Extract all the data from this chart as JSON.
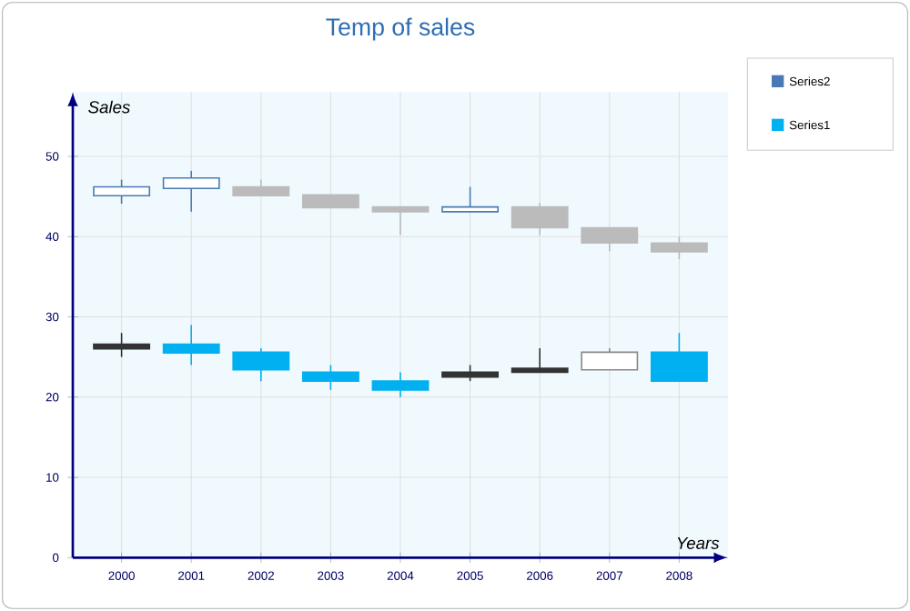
{
  "chart_data": {
    "type": "candlestick",
    "title": "Temp of sales",
    "xlabel": "Years",
    "ylabel": "Sales",
    "categories": [
      "2000",
      "2001",
      "2002",
      "2003",
      "2004",
      "2005",
      "2006",
      "2007",
      "2008"
    ],
    "ylim": [
      0,
      58
    ],
    "yticks": [
      0,
      10,
      20,
      30,
      40,
      50
    ],
    "grid": true,
    "legend": "top right",
    "series": [
      {
        "name": "Series2",
        "color": "#4a7ab5",
        "colors": [
          "#4a7ab5",
          "#4a7ab5",
          "#bbbbbb",
          "#bbbbbb",
          "#bbbbbb",
          "#4a7ab5",
          "#bbbbbb",
          "#bbbbbb",
          "#bbbbbb"
        ],
        "ohlc": [
          [
            45.1,
            47.1,
            44.1,
            46.2
          ],
          [
            46.0,
            48.2,
            43.1,
            47.3
          ],
          [
            46.2,
            47.1,
            45.1,
            45.1
          ],
          [
            45.2,
            45.2,
            43.6,
            43.6
          ],
          [
            43.7,
            43.7,
            40.2,
            43.1
          ],
          [
            43.1,
            46.2,
            43.1,
            43.7
          ],
          [
            43.7,
            44.2,
            40.2,
            41.1
          ],
          [
            41.1,
            41.1,
            38.2,
            39.2
          ],
          [
            39.2,
            40.0,
            37.2,
            38.1
          ]
        ]
      },
      {
        "name": "Series1",
        "color": "#00b0f0",
        "colors": [
          "#333333",
          "#00b0f0",
          "#00b0f0",
          "#00b0f0",
          "#00b0f0",
          "#333333",
          "#333333",
          "#888888",
          "#00b0f0"
        ],
        "ohlc": [
          [
            26.6,
            28.0,
            25.0,
            26.0
          ],
          [
            26.6,
            29.0,
            24.0,
            25.5
          ],
          [
            25.6,
            26.1,
            22.0,
            23.4
          ],
          [
            23.1,
            24.0,
            20.9,
            22.0
          ],
          [
            22.0,
            23.1,
            20.0,
            20.9
          ],
          [
            23.1,
            24.0,
            22.0,
            22.5
          ],
          [
            23.6,
            26.1,
            23.1,
            23.1
          ],
          [
            23.4,
            26.1,
            23.4,
            25.6
          ],
          [
            25.6,
            28.0,
            22.0,
            22.0
          ]
        ]
      }
    ]
  }
}
